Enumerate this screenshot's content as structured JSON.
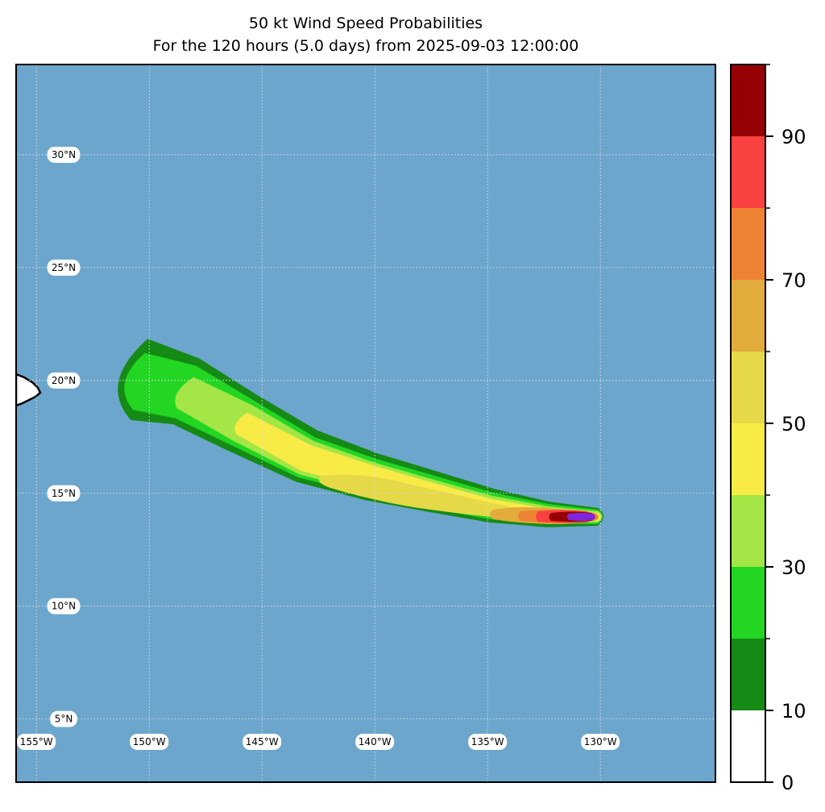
{
  "title": "50 kt Wind Speed Probabilities",
  "subtitle": "For the 120 hours (5.0 days) from 2025-09-03 12:00:00",
  "map": {
    "ocean_color": "#6ca6cd",
    "land_color": "#ffffff",
    "lon_range": [
      -155.9,
      -124.9
    ],
    "lat_range": [
      2.2,
      34.0
    ],
    "lon_grid": [
      -155,
      -150,
      -145,
      -140,
      -135,
      -130
    ],
    "lat_grid": [
      5,
      10,
      15,
      20,
      25,
      30
    ],
    "lon_labels": [
      "155°W",
      "150°W",
      "145°W",
      "140°W",
      "135°W",
      "130°W"
    ],
    "lat_labels": [
      "5°N",
      "10°N",
      "15°N",
      "20°N",
      "25°N",
      "30°N"
    ],
    "land_feature": "Hawaii (Big Island), partially visible at western edge"
  },
  "probability_swath": {
    "storm_position_lon_lat": [
      -130.1,
      14.0
    ],
    "track_direction": "west-northwest",
    "levels": [
      {
        "min": 0,
        "max": 10,
        "color": "#158a15"
      },
      {
        "min": 10,
        "max": 20,
        "color": "#22d622"
      },
      {
        "min": 20,
        "max": 30,
        "color": "#a3e645"
      },
      {
        "min": 30,
        "max": 40,
        "color": "#f9eb46"
      },
      {
        "min": 40,
        "max": 50,
        "color": "#e6d947"
      },
      {
        "min": 50,
        "max": 60,
        "color": "#e3ab3c"
      },
      {
        "min": 60,
        "max": 70,
        "color": "#ee8233"
      },
      {
        "min": 70,
        "max": 80,
        "color": "#fa4141"
      },
      {
        "min": 80,
        "max": 90,
        "color": "#960004"
      },
      {
        "min": 90,
        "max": 100,
        "color": "#7f27da"
      }
    ]
  },
  "colorbar": {
    "colors": [
      "#ffffff",
      "#158a15",
      "#22d622",
      "#a3e645",
      "#f9eb46",
      "#e6d947",
      "#e3ab3c",
      "#ee8233",
      "#fa4141",
      "#960004",
      "#7f27da"
    ],
    "boundaries": [
      0,
      10,
      20,
      30,
      40,
      50,
      60,
      70,
      80,
      90,
      100
    ],
    "tick_labels": [
      "0",
      "10",
      "30",
      "50",
      "70",
      "90"
    ]
  }
}
